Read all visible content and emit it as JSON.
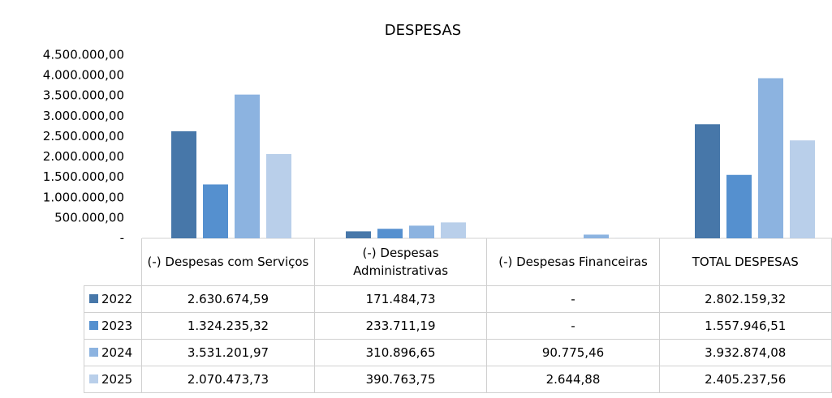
{
  "chart_data": {
    "type": "bar",
    "title": "DESPESAS",
    "categories": [
      "(-) Despesas com Serviços",
      "(-) Despesas Administrativas",
      "(-) Despesas Financeiras",
      "TOTAL DESPESAS"
    ],
    "series": [
      {
        "name": "2022",
        "color": "#4777a9",
        "values": [
          2630674.59,
          171484.73,
          null,
          2802159.32
        ],
        "value_labels": [
          "2.630.674,59",
          "171.484,73",
          "-",
          "2.802.159,32"
        ]
      },
      {
        "name": "2023",
        "color": "#5590cf",
        "values": [
          1324235.32,
          233711.19,
          null,
          1557946.51
        ],
        "value_labels": [
          "1.324.235,32",
          "233.711,19",
          "-",
          "1.557.946,51"
        ]
      },
      {
        "name": "2024",
        "color": "#8cb3e0",
        "values": [
          3531201.97,
          310896.65,
          90775.46,
          3932874.08
        ],
        "value_labels": [
          "3.531.201,97",
          "310.896,65",
          "90.775,46",
          "3.932.874,08"
        ]
      },
      {
        "name": "2025",
        "color": "#b9cfea",
        "values": [
          2070473.73,
          390763.75,
          2644.88,
          2405237.56
        ],
        "value_labels": [
          "2.070.473,73",
          "390.763,75",
          "2.644,88",
          "2.405.237,56"
        ]
      }
    ],
    "ylim": [
      0,
      4500000
    ],
    "yticks": [
      {
        "value": 0,
        "label": "-"
      },
      {
        "value": 500000,
        "label": "500.000,00"
      },
      {
        "value": 1000000,
        "label": "1.000.000,00"
      },
      {
        "value": 1500000,
        "label": "1.500.000,00"
      },
      {
        "value": 2000000,
        "label": "2.000.000,00"
      },
      {
        "value": 2500000,
        "label": "2.500.000,00"
      },
      {
        "value": 3000000,
        "label": "3.000.000,00"
      },
      {
        "value": 3500000,
        "label": "3.500.000,00"
      },
      {
        "value": 4000000,
        "label": "4.000.000,00"
      },
      {
        "value": 4500000,
        "label": "4.500.000,00"
      }
    ]
  }
}
